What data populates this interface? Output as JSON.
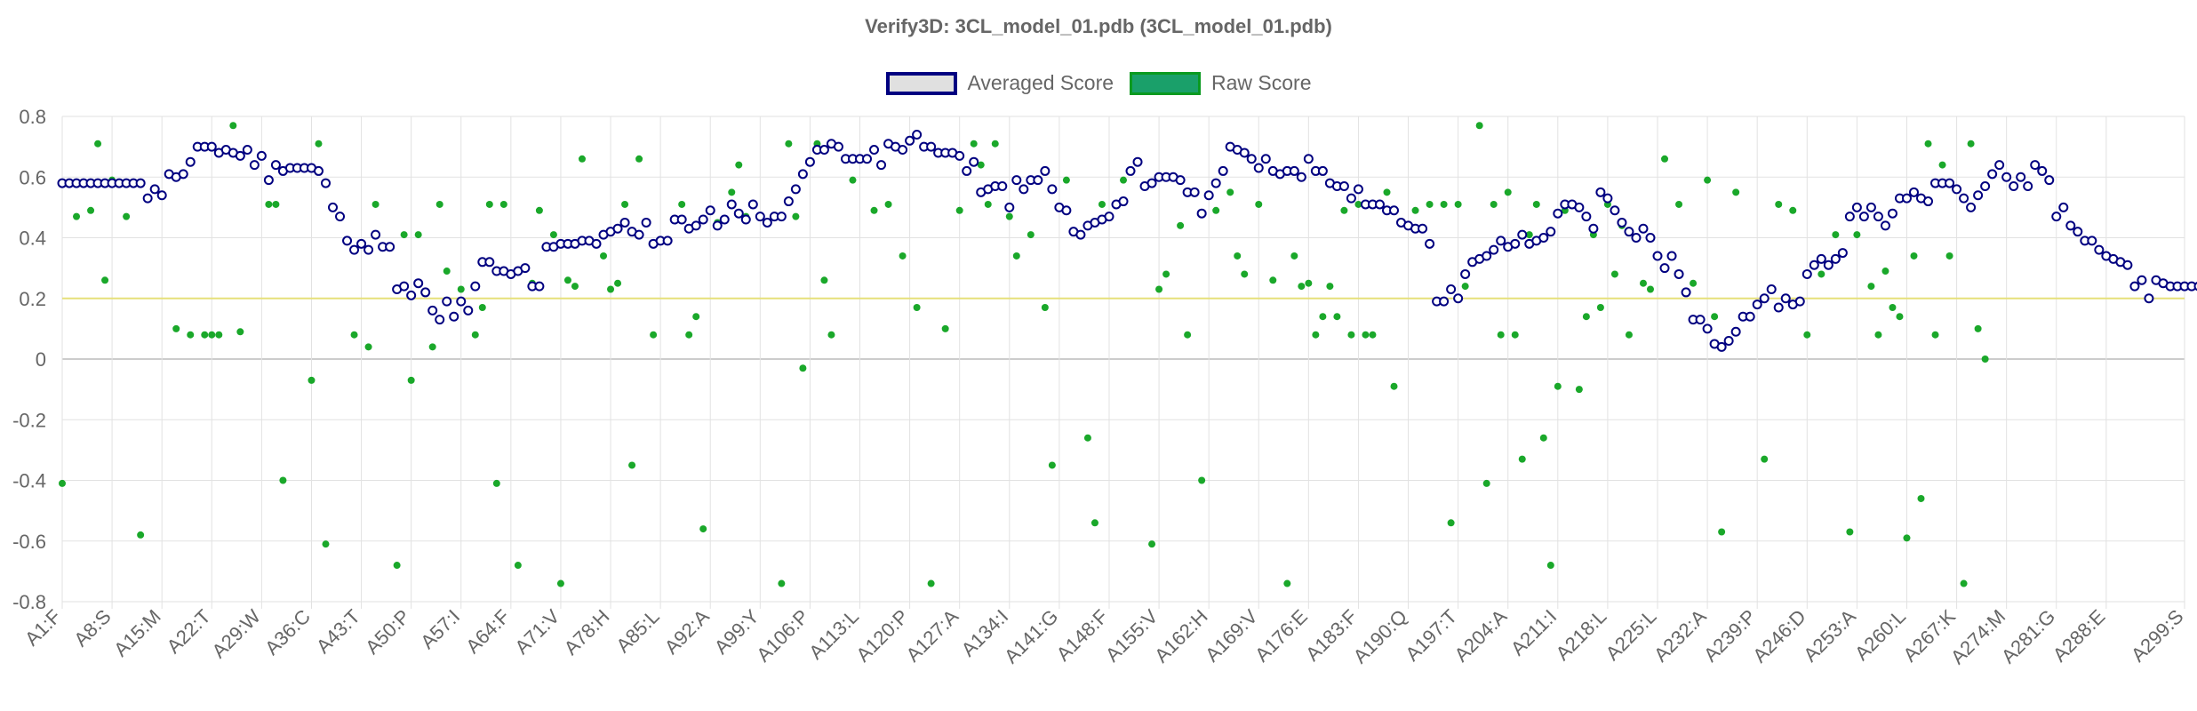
{
  "title": "Verify3D: 3CL_model_01.pdb (3CL_model_01.pdb)",
  "legend": {
    "averaged": {
      "label": "Averaged Score",
      "fill": "#e0e0e0",
      "border": "#000080"
    },
    "raw": {
      "label": "Raw Score",
      "fill": "#1aa06a",
      "border": "#0a9a20"
    }
  },
  "colors": {
    "averaged_point_stroke": "#000080",
    "averaged_point_fill": "#ffffff",
    "raw_point": "#1aa82a",
    "threshold_line": "#e6e07a",
    "grid": "#e2e2e2",
    "zero_line": "#bbbbbb"
  },
  "chart_data": {
    "type": "scatter",
    "title": "Verify3D: 3CL_model_01.pdb (3CL_model_01.pdb)",
    "ylim": [
      -0.8,
      0.8
    ],
    "y_ticks": [
      0.8,
      0.6,
      0.4,
      0.2,
      0,
      -0.2,
      -0.4,
      -0.6,
      -0.8
    ],
    "y_tick_labels": [
      "0.8",
      "0.6",
      "0.4",
      "0.2",
      "0",
      "-0.2",
      "-0.4",
      "-0.6",
      "-0.8"
    ],
    "x_tick_labels": [
      "A1:F",
      "A8:S",
      "A15:M",
      "A22:T",
      "A29:W",
      "A36:C",
      "A43:T",
      "A50:P",
      "A57:I",
      "A64:F",
      "A71:V",
      "A78:H",
      "A85:L",
      "A92:A",
      "A99:Y",
      "A106:P",
      "A113:L",
      "A120:P",
      "A127:A",
      "A134:I",
      "A141:G",
      "A148:F",
      "A155:V",
      "A162:H",
      "A169:V",
      "A176:E",
      "A183:F",
      "A190:Q",
      "A197:T",
      "A204:A",
      "A211:I",
      "A218:L",
      "A225:L",
      "A232:A",
      "A239:P",
      "A246:D",
      "A253:A",
      "A260:L",
      "A267:K",
      "A274:M",
      "A281:G",
      "A288:E",
      "A299:S"
    ],
    "x_tick_index": [
      1,
      8,
      15,
      22,
      29,
      36,
      43,
      50,
      57,
      64,
      71,
      78,
      85,
      92,
      99,
      106,
      113,
      120,
      127,
      134,
      141,
      148,
      155,
      162,
      169,
      176,
      183,
      190,
      197,
      204,
      211,
      218,
      225,
      232,
      239,
      246,
      253,
      260,
      267,
      274,
      281,
      288,
      299
    ],
    "threshold": 0.2,
    "grid": true,
    "legend_position": "top",
    "series": [
      {
        "name": "Averaged Score",
        "residue_start": 1,
        "values": [
          0.58,
          0.58,
          0.58,
          0.58,
          0.58,
          0.58,
          0.58,
          0.58,
          0.58,
          0.58,
          0.58,
          0.58,
          0.53,
          0.56,
          0.54,
          0.61,
          0.6,
          0.61,
          0.65,
          0.7,
          0.7,
          0.7,
          0.68,
          0.69,
          0.68,
          0.67,
          0.69,
          0.64,
          0.67,
          0.59,
          0.64,
          0.62,
          0.63,
          0.63,
          0.63,
          0.63,
          0.62,
          0.58,
          0.5,
          0.47,
          0.39,
          0.36,
          0.38,
          0.36,
          0.41,
          0.37,
          0.37,
          0.23,
          0.24,
          0.21,
          0.25,
          0.22,
          0.16,
          0.13,
          0.19,
          0.14,
          0.19,
          0.16,
          0.24,
          0.32,
          0.32,
          0.29,
          0.29,
          0.28,
          0.29,
          0.3,
          0.24,
          0.24,
          0.37,
          0.37,
          0.38,
          0.38,
          0.38,
          0.39,
          0.39,
          0.38,
          0.41,
          0.42,
          0.43,
          0.45,
          0.42,
          0.41,
          0.45,
          0.38,
          0.39,
          0.39,
          0.46,
          0.46,
          0.43,
          0.44,
          0.46,
          0.49,
          0.44,
          0.46,
          0.51,
          0.48,
          0.46,
          0.51,
          0.47,
          0.45,
          0.47,
          0.47,
          0.52,
          0.56,
          0.61,
          0.65,
          0.69,
          0.69,
          0.71,
          0.7,
          0.66,
          0.66,
          0.66,
          0.66,
          0.69,
          0.64,
          0.71,
          0.7,
          0.69,
          0.72,
          0.74,
          0.7,
          0.7,
          0.68,
          0.68,
          0.68,
          0.67,
          0.62,
          0.65,
          0.55,
          0.56,
          0.57,
          0.57,
          0.5,
          0.59,
          0.56,
          0.59,
          0.59,
          0.62,
          0.56,
          0.5,
          0.49,
          0.42,
          0.41,
          0.44,
          0.45,
          0.46,
          0.47,
          0.51,
          0.52,
          0.62,
          0.65,
          0.57,
          0.58,
          0.6,
          0.6,
          0.6,
          0.59,
          0.55,
          0.55,
          0.48,
          0.54,
          0.58,
          0.62,
          0.7,
          0.69,
          0.68,
          0.66,
          0.63,
          0.66,
          0.62,
          0.61,
          0.62,
          0.62,
          0.6,
          0.66,
          0.62,
          0.62,
          0.58,
          0.57,
          0.57,
          0.53,
          0.56,
          0.51,
          0.51,
          0.51,
          0.49,
          0.49,
          0.45,
          0.44,
          0.43,
          0.43,
          0.38,
          0.19,
          0.19,
          0.23,
          0.2,
          0.28,
          0.32,
          0.33,
          0.34,
          0.36,
          0.39,
          0.37,
          0.38,
          0.41,
          0.38,
          0.39,
          0.4,
          0.42,
          0.48,
          0.51,
          0.51,
          0.5,
          0.47,
          0.43,
          0.55,
          0.53,
          0.49,
          0.45,
          0.42,
          0.4,
          0.43,
          0.4,
          0.34,
          0.3,
          0.34,
          0.28,
          0.22,
          0.13,
          0.13,
          0.1,
          0.05,
          0.04,
          0.06,
          0.09,
          0.14,
          0.14,
          0.18,
          0.2,
          0.23,
          0.17,
          0.2,
          0.18,
          0.19,
          0.28,
          0.31,
          0.33,
          0.31,
          0.33,
          0.35,
          0.47,
          0.5,
          0.47,
          0.5,
          0.47,
          0.44,
          0.48,
          0.53,
          0.53,
          0.55,
          0.53,
          0.52,
          0.58,
          0.58,
          0.58,
          0.56,
          0.53,
          0.5,
          0.54,
          0.57,
          0.61,
          0.64,
          0.6,
          0.57,
          0.6,
          0.57,
          0.64,
          0.62,
          0.59,
          0.47,
          0.5,
          0.44,
          0.42,
          0.39,
          0.39,
          0.36,
          0.34,
          0.33,
          0.32,
          0.31,
          0.24,
          0.26,
          0.2,
          0.26,
          0.25,
          0.24,
          0.24,
          0.24,
          0.24,
          0.24,
          0.24,
          0.24,
          0.24,
          0.24,
          0.24,
          0.24,
          0.24
        ]
      },
      {
        "name": "Raw Score",
        "points": [
          [
            1,
            -0.41
          ],
          [
            3,
            0.47
          ],
          [
            5,
            0.49
          ],
          [
            6,
            0.71
          ],
          [
            7,
            0.26
          ],
          [
            8,
            0.59
          ],
          [
            10,
            0.47
          ],
          [
            12,
            -0.58
          ],
          [
            17,
            0.1
          ],
          [
            19,
            0.08
          ],
          [
            21,
            0.08
          ],
          [
            22,
            0.08
          ],
          [
            23,
            0.08
          ],
          [
            25,
            0.77
          ],
          [
            26,
            0.09
          ],
          [
            30,
            0.51
          ],
          [
            31,
            0.51
          ],
          [
            32,
            -0.4
          ],
          [
            36,
            -0.07
          ],
          [
            37,
            0.71
          ],
          [
            38,
            -0.61
          ],
          [
            42,
            0.08
          ],
          [
            44,
            0.04
          ],
          [
            45,
            0.51
          ],
          [
            48,
            -0.68
          ],
          [
            49,
            0.41
          ],
          [
            50,
            -0.07
          ],
          [
            51,
            0.41
          ],
          [
            53,
            0.04
          ],
          [
            54,
            0.51
          ],
          [
            55,
            0.29
          ],
          [
            57,
            0.23
          ],
          [
            59,
            0.08
          ],
          [
            60,
            0.17
          ],
          [
            61,
            0.51
          ],
          [
            62,
            -0.41
          ],
          [
            63,
            0.51
          ],
          [
            65,
            -0.68
          ],
          [
            67,
            0.25
          ],
          [
            68,
            0.49
          ],
          [
            70,
            0.41
          ],
          [
            71,
            -0.74
          ],
          [
            72,
            0.26
          ],
          [
            73,
            0.24
          ],
          [
            74,
            0.66
          ],
          [
            77,
            0.34
          ],
          [
            78,
            0.23
          ],
          [
            79,
            0.25
          ],
          [
            80,
            0.51
          ],
          [
            81,
            -0.35
          ],
          [
            82,
            0.66
          ],
          [
            84,
            0.08
          ],
          [
            88,
            0.51
          ],
          [
            89,
            0.08
          ],
          [
            90,
            0.14
          ],
          [
            91,
            -0.56
          ],
          [
            93,
            0.45
          ],
          [
            95,
            0.55
          ],
          [
            96,
            0.64
          ],
          [
            97,
            0.47
          ],
          [
            99,
            0.47
          ],
          [
            101,
            0.47
          ],
          [
            102,
            -0.74
          ],
          [
            103,
            0.71
          ],
          [
            104,
            0.47
          ],
          [
            105,
            -0.03
          ],
          [
            107,
            0.71
          ],
          [
            108,
            0.26
          ],
          [
            109,
            0.08
          ],
          [
            112,
            0.59
          ],
          [
            115,
            0.49
          ],
          [
            117,
            0.51
          ],
          [
            119,
            0.34
          ],
          [
            121,
            0.17
          ],
          [
            123,
            -0.74
          ],
          [
            125,
            0.1
          ],
          [
            127,
            0.49
          ],
          [
            129,
            0.71
          ],
          [
            130,
            0.64
          ],
          [
            131,
            0.51
          ],
          [
            132,
            0.71
          ],
          [
            134,
            0.47
          ],
          [
            135,
            0.34
          ],
          [
            137,
            0.41
          ],
          [
            139,
            0.17
          ],
          [
            140,
            -0.35
          ],
          [
            142,
            0.59
          ],
          [
            145,
            -0.26
          ],
          [
            146,
            -0.54
          ],
          [
            147,
            0.51
          ],
          [
            149,
            0.51
          ],
          [
            150,
            0.59
          ],
          [
            154,
            -0.61
          ],
          [
            155,
            0.23
          ],
          [
            156,
            0.28
          ],
          [
            158,
            0.44
          ],
          [
            159,
            0.08
          ],
          [
            161,
            -0.4
          ],
          [
            163,
            0.49
          ],
          [
            165,
            0.55
          ],
          [
            166,
            0.34
          ],
          [
            167,
            0.28
          ],
          [
            169,
            0.51
          ],
          [
            171,
            0.26
          ],
          [
            173,
            -0.74
          ],
          [
            174,
            0.34
          ],
          [
            175,
            0.24
          ],
          [
            176,
            0.25
          ],
          [
            177,
            0.08
          ],
          [
            178,
            0.14
          ],
          [
            179,
            0.24
          ],
          [
            180,
            0.14
          ],
          [
            181,
            0.49
          ],
          [
            182,
            0.08
          ],
          [
            183,
            0.51
          ],
          [
            184,
            0.08
          ],
          [
            185,
            0.08
          ],
          [
            187,
            0.55
          ],
          [
            188,
            -0.09
          ],
          [
            191,
            0.49
          ],
          [
            193,
            0.51
          ],
          [
            195,
            0.51
          ],
          [
            196,
            -0.54
          ],
          [
            197,
            0.51
          ],
          [
            198,
            0.24
          ],
          [
            200,
            0.77
          ],
          [
            201,
            -0.41
          ],
          [
            202,
            0.51
          ],
          [
            203,
            0.08
          ],
          [
            204,
            0.55
          ],
          [
            205,
            0.08
          ],
          [
            206,
            -0.33
          ],
          [
            207,
            0.41
          ],
          [
            208,
            0.51
          ],
          [
            209,
            -0.26
          ],
          [
            210,
            -0.68
          ],
          [
            211,
            -0.09
          ],
          [
            212,
            0.49
          ],
          [
            214,
            -0.1
          ],
          [
            215,
            0.14
          ],
          [
            216,
            0.41
          ],
          [
            217,
            0.17
          ],
          [
            218,
            0.51
          ],
          [
            219,
            0.28
          ],
          [
            220,
            0.44
          ],
          [
            221,
            0.08
          ],
          [
            223,
            0.25
          ],
          [
            224,
            0.23
          ],
          [
            226,
            0.66
          ],
          [
            228,
            0.51
          ],
          [
            230,
            0.25
          ],
          [
            232,
            0.59
          ],
          [
            233,
            0.14
          ],
          [
            234,
            -0.57
          ],
          [
            236,
            0.55
          ],
          [
            238,
            0.14
          ],
          [
            240,
            -0.33
          ],
          [
            242,
            0.51
          ],
          [
            244,
            0.49
          ],
          [
            246,
            0.08
          ],
          [
            248,
            0.28
          ],
          [
            250,
            0.41
          ],
          [
            252,
            -0.57
          ],
          [
            253,
            0.41
          ],
          [
            255,
            0.24
          ],
          [
            256,
            0.08
          ],
          [
            257,
            0.29
          ],
          [
            258,
            0.17
          ],
          [
            259,
            0.14
          ],
          [
            260,
            -0.59
          ],
          [
            261,
            0.34
          ],
          [
            262,
            -0.46
          ],
          [
            263,
            0.71
          ],
          [
            264,
            0.08
          ],
          [
            265,
            0.64
          ],
          [
            266,
            0.34
          ],
          [
            268,
            -0.74
          ],
          [
            269,
            0.71
          ],
          [
            270,
            0.1
          ],
          [
            271,
            0.0
          ]
        ]
      }
    ]
  }
}
